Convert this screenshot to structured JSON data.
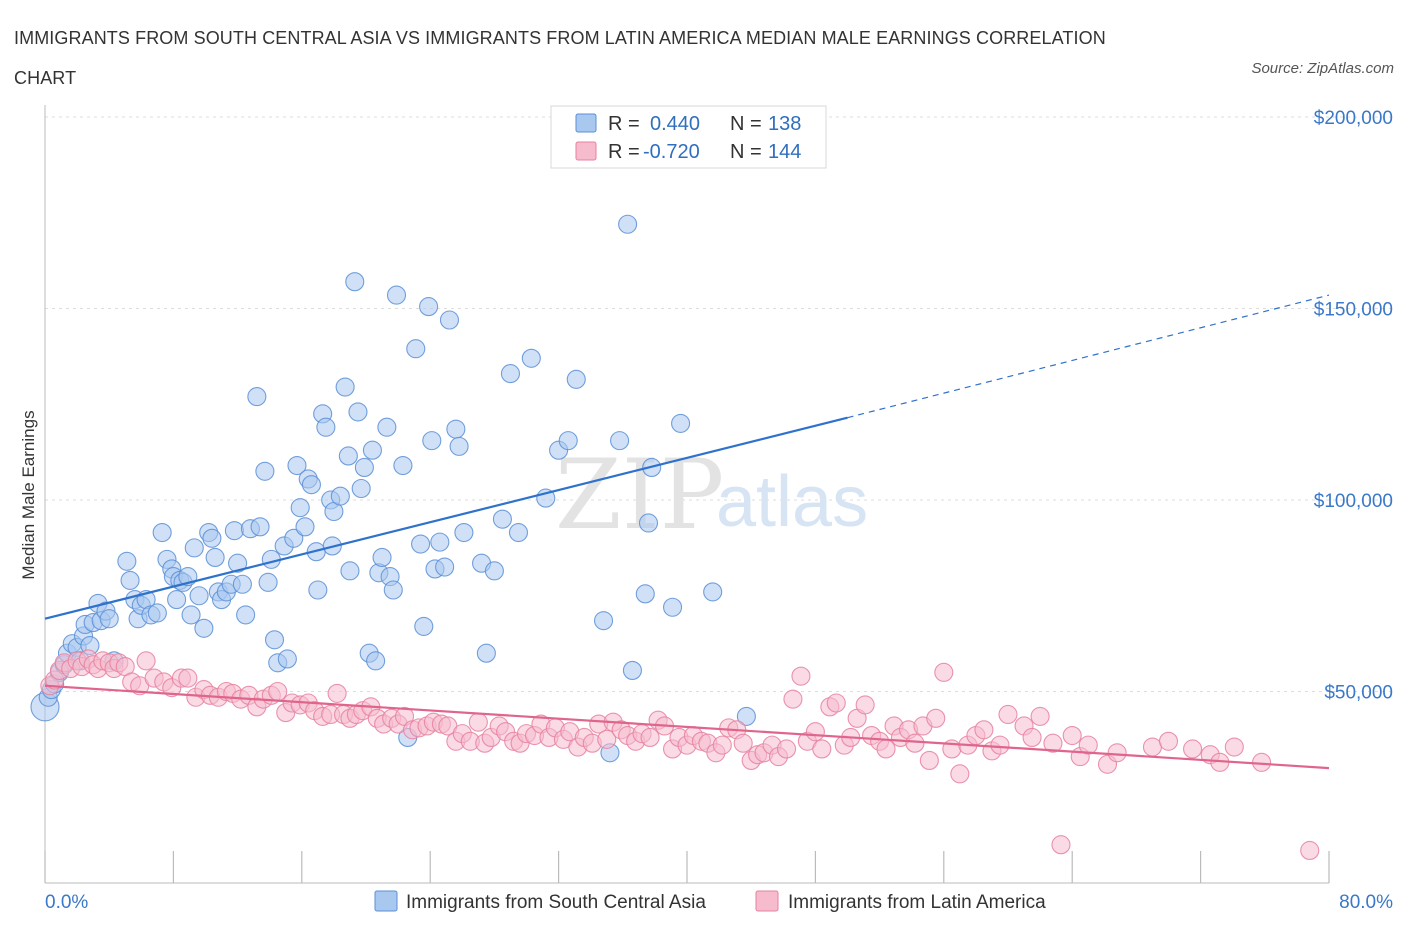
{
  "title": "IMMIGRANTS FROM SOUTH CENTRAL ASIA VS IMMIGRANTS FROM LATIN AMERICA MEDIAN MALE EARNINGS CORRELATION CHART",
  "source": "Source: ZipAtlas.com",
  "watermark": {
    "zip": "ZIP",
    "atlas": "atlas"
  },
  "legend": {
    "r_label": "R =",
    "n_label": "N =",
    "rows": [
      {
        "r": "0.440",
        "n": "138",
        "fill": "#a9c8f0",
        "stroke": "#5b8fd6"
      },
      {
        "r": "-0.720",
        "n": "144",
        "fill": "#f6bccd",
        "stroke": "#e6819f"
      }
    ]
  },
  "chart_data": {
    "type": "scatter",
    "title": "IMMIGRANTS FROM SOUTH CENTRAL ASIA VS IMMIGRANTS FROM LATIN AMERICA MEDIAN MALE EARNINGS CORRELATION CHART",
    "xlabel": "",
    "ylabel": "Median Male Earnings",
    "xlim": [
      0,
      80
    ],
    "ylim": [
      0,
      200000
    ],
    "x_tick_labels": [
      "0.0%",
      "80.0%"
    ],
    "y_tick_labels": [
      "$50,000",
      "$100,000",
      "$150,000",
      "$200,000"
    ],
    "y_ticks": [
      50000,
      100000,
      150000,
      200000
    ],
    "grid": true,
    "legend_position": "top-center",
    "series": [
      {
        "name": "Immigrants from South Central Asia",
        "color": "#5b8fd6",
        "fill": "#a9c8f0",
        "r": 0.44,
        "n": 138,
        "trend": {
          "x": [
            0,
            50
          ],
          "y": [
            69000,
            121500
          ],
          "dashed_to": [
            80,
            153500
          ]
        },
        "points": [
          [
            0.0,
            46000
          ],
          [
            0.2,
            48500
          ],
          [
            0.4,
            50500
          ],
          [
            0.6,
            52000
          ],
          [
            0.9,
            55000
          ],
          [
            1.2,
            57000
          ],
          [
            1.4,
            60000
          ],
          [
            1.7,
            62500
          ],
          [
            2.0,
            61500
          ],
          [
            2.2,
            58000
          ],
          [
            2.4,
            64500
          ],
          [
            2.5,
            67500
          ],
          [
            2.8,
            62000
          ],
          [
            3.0,
            68000
          ],
          [
            3.3,
            73000
          ],
          [
            3.5,
            68500
          ],
          [
            3.8,
            71000
          ],
          [
            4.0,
            69000
          ],
          [
            4.3,
            58000
          ],
          [
            5.1,
            84000
          ],
          [
            5.3,
            79000
          ],
          [
            5.6,
            74000
          ],
          [
            5.8,
            69000
          ],
          [
            6.0,
            72500
          ],
          [
            6.3,
            74000
          ],
          [
            6.6,
            70000
          ],
          [
            7.0,
            70500
          ],
          [
            7.3,
            91500
          ],
          [
            7.6,
            84500
          ],
          [
            7.9,
            82000
          ],
          [
            8.0,
            80000
          ],
          [
            8.2,
            74000
          ],
          [
            8.4,
            79000
          ],
          [
            8.6,
            78500
          ],
          [
            8.9,
            80000
          ],
          [
            9.1,
            70000
          ],
          [
            9.3,
            87500
          ],
          [
            9.6,
            75000
          ],
          [
            9.9,
            66500
          ],
          [
            10.2,
            91500
          ],
          [
            10.4,
            90000
          ],
          [
            10.6,
            85000
          ],
          [
            10.8,
            76000
          ],
          [
            11.0,
            74000
          ],
          [
            11.3,
            76000
          ],
          [
            11.6,
            78000
          ],
          [
            11.8,
            92000
          ],
          [
            12.0,
            83500
          ],
          [
            12.3,
            78000
          ],
          [
            12.5,
            70000
          ],
          [
            12.8,
            92500
          ],
          [
            13.2,
            127000
          ],
          [
            13.4,
            93000
          ],
          [
            13.7,
            107500
          ],
          [
            13.9,
            78500
          ],
          [
            14.1,
            84500
          ],
          [
            14.3,
            63500
          ],
          [
            14.5,
            57500
          ],
          [
            14.9,
            88000
          ],
          [
            15.1,
            58500
          ],
          [
            15.5,
            90000
          ],
          [
            15.7,
            109000
          ],
          [
            15.9,
            98000
          ],
          [
            16.2,
            93000
          ],
          [
            16.4,
            105500
          ],
          [
            16.6,
            104000
          ],
          [
            16.9,
            86500
          ],
          [
            17.0,
            76500
          ],
          [
            17.3,
            122500
          ],
          [
            17.5,
            119000
          ],
          [
            17.8,
            100000
          ],
          [
            17.9,
            88000
          ],
          [
            18.0,
            97000
          ],
          [
            18.4,
            101000
          ],
          [
            18.7,
            129500
          ],
          [
            18.9,
            111500
          ],
          [
            19.0,
            81500
          ],
          [
            19.3,
            157000
          ],
          [
            19.5,
            123000
          ],
          [
            19.7,
            103000
          ],
          [
            19.9,
            108500
          ],
          [
            20.2,
            60000
          ],
          [
            20.4,
            113000
          ],
          [
            20.6,
            58000
          ],
          [
            20.8,
            81000
          ],
          [
            21.0,
            85000
          ],
          [
            21.3,
            119000
          ],
          [
            21.5,
            80000
          ],
          [
            21.7,
            76500
          ],
          [
            21.9,
            153500
          ],
          [
            22.3,
            109000
          ],
          [
            22.6,
            38000
          ],
          [
            23.1,
            139500
          ],
          [
            23.4,
            88500
          ],
          [
            23.6,
            67000
          ],
          [
            23.9,
            150500
          ],
          [
            24.1,
            115500
          ],
          [
            24.3,
            82000
          ],
          [
            24.6,
            89000
          ],
          [
            24.9,
            82500
          ],
          [
            25.2,
            147000
          ],
          [
            25.6,
            118500
          ],
          [
            25.8,
            114000
          ],
          [
            26.1,
            91500
          ],
          [
            27.2,
            83500
          ],
          [
            27.5,
            60000
          ],
          [
            28.0,
            81500
          ],
          [
            28.5,
            95000
          ],
          [
            29.0,
            133000
          ],
          [
            29.5,
            91500
          ],
          [
            30.3,
            137000
          ],
          [
            31.2,
            100500
          ],
          [
            32.0,
            113000
          ],
          [
            32.6,
            115500
          ],
          [
            33.1,
            131500
          ],
          [
            34.8,
            68500
          ],
          [
            35.2,
            34000
          ],
          [
            35.8,
            115500
          ],
          [
            36.3,
            172000
          ],
          [
            36.6,
            55500
          ],
          [
            37.4,
            75500
          ],
          [
            37.6,
            94000
          ],
          [
            37.8,
            108500
          ],
          [
            39.1,
            72000
          ],
          [
            39.6,
            120000
          ],
          [
            41.6,
            76000
          ],
          [
            43.7,
            43500
          ]
        ]
      },
      {
        "name": "Immigrants from Latin America",
        "color": "#e6819f",
        "fill": "#f6bccd",
        "r": -0.72,
        "n": 144,
        "trend": {
          "x": [
            0,
            80
          ],
          "y": [
            51500,
            30000
          ]
        },
        "points": [
          [
            0.3,
            51500
          ],
          [
            0.6,
            53000
          ],
          [
            0.9,
            55500
          ],
          [
            1.2,
            57500
          ],
          [
            1.6,
            56000
          ],
          [
            2.0,
            58000
          ],
          [
            2.3,
            56500
          ],
          [
            2.7,
            58500
          ],
          [
            3.0,
            57000
          ],
          [
            3.3,
            56000
          ],
          [
            3.6,
            58000
          ],
          [
            4.0,
            57500
          ],
          [
            4.3,
            56000
          ],
          [
            4.6,
            57500
          ],
          [
            5.0,
            56500
          ],
          [
            5.4,
            52500
          ],
          [
            5.9,
            51500
          ],
          [
            6.3,
            58000
          ],
          [
            6.8,
            53500
          ],
          [
            7.4,
            52500
          ],
          [
            7.9,
            51000
          ],
          [
            8.5,
            53500
          ],
          [
            8.9,
            53500
          ],
          [
            9.4,
            48500
          ],
          [
            9.9,
            50500
          ],
          [
            10.3,
            49000
          ],
          [
            10.8,
            48500
          ],
          [
            11.3,
            50000
          ],
          [
            11.7,
            49500
          ],
          [
            12.2,
            48000
          ],
          [
            12.7,
            49000
          ],
          [
            13.2,
            46000
          ],
          [
            13.6,
            48000
          ],
          [
            14.1,
            49000
          ],
          [
            14.5,
            50000
          ],
          [
            15.0,
            44500
          ],
          [
            15.4,
            47000
          ],
          [
            15.9,
            46500
          ],
          [
            16.4,
            47000
          ],
          [
            16.8,
            45000
          ],
          [
            17.3,
            43500
          ],
          [
            17.8,
            44000
          ],
          [
            18.2,
            49500
          ],
          [
            18.6,
            44000
          ],
          [
            19.0,
            43000
          ],
          [
            19.4,
            44000
          ],
          [
            19.8,
            45000
          ],
          [
            20.3,
            46000
          ],
          [
            20.7,
            43000
          ],
          [
            21.1,
            41500
          ],
          [
            21.6,
            43000
          ],
          [
            22.0,
            41500
          ],
          [
            22.4,
            43500
          ],
          [
            22.9,
            40000
          ],
          [
            23.3,
            40500
          ],
          [
            23.8,
            41000
          ],
          [
            24.2,
            42000
          ],
          [
            24.7,
            41500
          ],
          [
            25.1,
            41000
          ],
          [
            25.6,
            37000
          ],
          [
            26.0,
            39000
          ],
          [
            26.5,
            37000
          ],
          [
            27.0,
            42000
          ],
          [
            27.4,
            36500
          ],
          [
            27.8,
            38000
          ],
          [
            28.3,
            41000
          ],
          [
            28.7,
            39500
          ],
          [
            29.2,
            37000
          ],
          [
            29.6,
            36500
          ],
          [
            30.0,
            39000
          ],
          [
            30.5,
            38500
          ],
          [
            30.9,
            41500
          ],
          [
            31.4,
            38000
          ],
          [
            31.8,
            40500
          ],
          [
            32.3,
            37500
          ],
          [
            32.7,
            39500
          ],
          [
            33.2,
            35500
          ],
          [
            33.6,
            38000
          ],
          [
            34.1,
            36500
          ],
          [
            34.5,
            41500
          ],
          [
            35.0,
            37500
          ],
          [
            35.4,
            42000
          ],
          [
            35.9,
            40000
          ],
          [
            36.3,
            38500
          ],
          [
            36.8,
            37000
          ],
          [
            37.2,
            39000
          ],
          [
            37.7,
            38000
          ],
          [
            38.2,
            42500
          ],
          [
            38.6,
            41000
          ],
          [
            39.1,
            35000
          ],
          [
            39.5,
            38000
          ],
          [
            40.0,
            36000
          ],
          [
            40.4,
            38500
          ],
          [
            40.9,
            37000
          ],
          [
            41.3,
            36500
          ],
          [
            41.8,
            34000
          ],
          [
            42.2,
            36000
          ],
          [
            42.6,
            40500
          ],
          [
            43.1,
            40000
          ],
          [
            43.5,
            36500
          ],
          [
            44.0,
            32000
          ],
          [
            44.4,
            33500
          ],
          [
            44.8,
            34000
          ],
          [
            45.3,
            36000
          ],
          [
            45.7,
            33000
          ],
          [
            46.2,
            35000
          ],
          [
            46.6,
            48000
          ],
          [
            47.1,
            54000
          ],
          [
            47.5,
            37000
          ],
          [
            48.0,
            39500
          ],
          [
            48.4,
            35000
          ],
          [
            48.9,
            46000
          ],
          [
            49.3,
            47000
          ],
          [
            49.8,
            36000
          ],
          [
            50.2,
            38000
          ],
          [
            50.6,
            43000
          ],
          [
            51.1,
            46500
          ],
          [
            51.5,
            38500
          ],
          [
            52.0,
            37000
          ],
          [
            52.4,
            35000
          ],
          [
            52.9,
            41000
          ],
          [
            53.3,
            38000
          ],
          [
            53.8,
            40000
          ],
          [
            54.2,
            36500
          ],
          [
            54.7,
            41000
          ],
          [
            55.1,
            32000
          ],
          [
            55.5,
            43000
          ],
          [
            56.0,
            55000
          ],
          [
            56.5,
            35000
          ],
          [
            57.0,
            28500
          ],
          [
            57.5,
            36000
          ],
          [
            58.0,
            38500
          ],
          [
            58.5,
            40000
          ],
          [
            59.0,
            34500
          ],
          [
            59.5,
            36000
          ],
          [
            60.0,
            44000
          ],
          [
            61.0,
            41000
          ],
          [
            61.5,
            38000
          ],
          [
            62.0,
            43500
          ],
          [
            62.8,
            36500
          ],
          [
            63.3,
            10000
          ],
          [
            64.0,
            38500
          ],
          [
            64.5,
            33000
          ],
          [
            65.0,
            36000
          ],
          [
            66.2,
            31000
          ],
          [
            66.8,
            34000
          ],
          [
            69.0,
            35500
          ],
          [
            70.0,
            37000
          ],
          [
            71.5,
            35000
          ],
          [
            72.6,
            33500
          ],
          [
            73.2,
            31500
          ],
          [
            74.1,
            35500
          ],
          [
            75.8,
            31500
          ],
          [
            78.8,
            8500
          ]
        ]
      }
    ]
  },
  "bottom_legend": {
    "items": [
      {
        "label": "Immigrants from South Central Asia",
        "fill": "#a9c8f0",
        "stroke": "#5b8fd6"
      },
      {
        "label": "Immigrants from Latin America",
        "fill": "#f6bccd",
        "stroke": "#e6819f"
      }
    ]
  }
}
